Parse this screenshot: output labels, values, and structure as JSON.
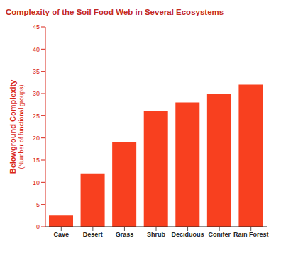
{
  "chart_data": {
    "type": "bar",
    "title": "Complexity of the Soil Food Web in Several Ecosystems",
    "ylabel": "Belowground Complexity",
    "ylabel_note": "(Number of functional groups)",
    "categories": [
      "Cave",
      "Desert",
      "Grass",
      "Shrub",
      "Deciduous",
      "Conifer",
      "Rain Forest"
    ],
    "values": [
      2.5,
      12,
      19,
      26,
      28,
      30,
      32
    ],
    "color": "#f8401f",
    "ylim": [
      0,
      45
    ],
    "yticks": [
      0,
      5,
      10,
      15,
      20,
      25,
      30,
      35,
      40,
      45
    ],
    "grid": false
  }
}
